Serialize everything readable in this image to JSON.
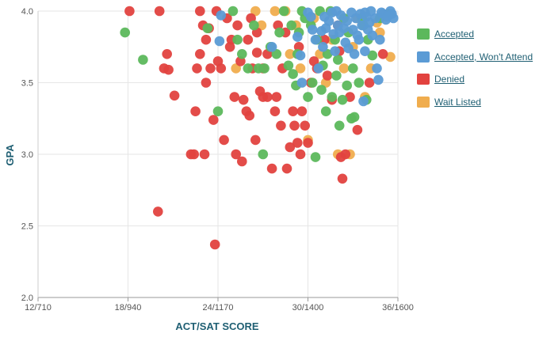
{
  "chart_data": {
    "type": "scatter",
    "xlabel": "ACT/SAT SCORE",
    "ylabel": "GPA",
    "x_axis": {
      "range": [
        12,
        36
      ],
      "ticks": [
        {
          "value": 12,
          "label": "12/710"
        },
        {
          "value": 18,
          "label": "18/940"
        },
        {
          "value": 24,
          "label": "24/1170"
        },
        {
          "value": 30,
          "label": "30/1400"
        },
        {
          "value": 36,
          "label": "36/1600"
        }
      ]
    },
    "y_axis": {
      "range": [
        2.0,
        4.0
      ],
      "ticks": [
        {
          "value": 2.0,
          "label": "2.0"
        },
        {
          "value": 2.5,
          "label": "2.5"
        },
        {
          "value": 3.0,
          "label": "3.0"
        },
        {
          "value": 3.5,
          "label": "3.5"
        },
        {
          "value": 4.0,
          "label": "4.0"
        }
      ]
    },
    "grid": true,
    "legend_position": "right",
    "series": [
      {
        "name": "Wait Listed",
        "color": "#f0ad4e",
        "points": [
          [
            25.2,
            3.6
          ],
          [
            26.5,
            4.0
          ],
          [
            27.8,
            4.0
          ],
          [
            28.5,
            4.0
          ],
          [
            29.2,
            3.9
          ],
          [
            30.0,
            3.1
          ],
          [
            30.8,
            3.7
          ],
          [
            31.2,
            3.5
          ],
          [
            32.0,
            3.0
          ],
          [
            32.8,
            3.0
          ],
          [
            33.3,
            3.95
          ],
          [
            33.8,
            3.4
          ],
          [
            34.2,
            3.6
          ],
          [
            34.8,
            3.85
          ],
          [
            35.5,
            3.68
          ],
          [
            29.5,
            3.6
          ],
          [
            31.6,
            3.8
          ],
          [
            28.8,
            3.7
          ],
          [
            30.4,
            3.95
          ],
          [
            33.0,
            3.75
          ],
          [
            26.9,
            3.9
          ],
          [
            32.4,
            3.6
          ],
          [
            34.6,
            3.92
          ]
        ]
      },
      {
        "name": "Denied",
        "color": "#e2423f",
        "points": [
          [
            18.1,
            4.0
          ],
          [
            20.1,
            4.0
          ],
          [
            20.4,
            3.6
          ],
          [
            20.6,
            3.7
          ],
          [
            20.7,
            3.59
          ],
          [
            21.1,
            3.41
          ],
          [
            20.0,
            2.6
          ],
          [
            22.2,
            3.0
          ],
          [
            22.4,
            3.0
          ],
          [
            22.6,
            3.6
          ],
          [
            23.0,
            3.9
          ],
          [
            23.2,
            3.8
          ],
          [
            23.5,
            3.6
          ],
          [
            23.2,
            3.5
          ],
          [
            23.7,
            3.24
          ],
          [
            23.8,
            2.37
          ],
          [
            24.2,
            3.6
          ],
          [
            24.4,
            3.1
          ],
          [
            24.9,
            3.8
          ],
          [
            25.1,
            3.4
          ],
          [
            25.2,
            3.0
          ],
          [
            25.6,
            2.95
          ],
          [
            25.7,
            3.38
          ],
          [
            25.9,
            3.3
          ],
          [
            26.1,
            3.27
          ],
          [
            26.3,
            3.6
          ],
          [
            26.6,
            3.71
          ],
          [
            26.8,
            3.44
          ],
          [
            27.0,
            3.4
          ],
          [
            27.3,
            3.4
          ],
          [
            27.6,
            2.9
          ],
          [
            27.8,
            3.3
          ],
          [
            27.9,
            3.4
          ],
          [
            28.3,
            3.6
          ],
          [
            28.6,
            2.9
          ],
          [
            28.8,
            3.05
          ],
          [
            29.0,
            3.3
          ],
          [
            29.1,
            3.2
          ],
          [
            29.3,
            3.08
          ],
          [
            29.5,
            3.0
          ],
          [
            29.6,
            3.3
          ],
          [
            29.8,
            3.2
          ],
          [
            30.0,
            3.08
          ],
          [
            30.2,
            3.5
          ],
          [
            30.6,
            3.6
          ],
          [
            31.1,
            3.8
          ],
          [
            31.6,
            3.38
          ],
          [
            32.0,
            3.9
          ],
          [
            32.2,
            2.98
          ],
          [
            32.3,
            2.83
          ],
          [
            32.5,
            3.0
          ],
          [
            32.8,
            3.4
          ],
          [
            33.3,
            3.17
          ],
          [
            34.1,
            3.5
          ],
          [
            35.0,
            3.7
          ],
          [
            22.8,
            4.0
          ],
          [
            23.9,
            4.0
          ],
          [
            24.6,
            3.95
          ],
          [
            25.3,
            3.9
          ],
          [
            26.0,
            3.8
          ],
          [
            26.6,
            3.85
          ],
          [
            27.3,
            3.7
          ],
          [
            28.0,
            3.9
          ],
          [
            22.8,
            3.7
          ],
          [
            23.4,
            3.88
          ],
          [
            24.0,
            3.65
          ],
          [
            24.8,
            3.75
          ],
          [
            25.5,
            3.65
          ],
          [
            26.2,
            3.95
          ],
          [
            27.0,
            3.6
          ],
          [
            28.5,
            3.85
          ],
          [
            29.4,
            3.75
          ],
          [
            30.4,
            3.65
          ],
          [
            31.3,
            3.55
          ],
          [
            32.1,
            3.72
          ],
          [
            22.5,
            3.3
          ],
          [
            23.1,
            3.0
          ],
          [
            26.5,
            3.1
          ],
          [
            28.2,
            3.2
          ]
        ]
      },
      {
        "name": "Accepted",
        "color": "#5cb85c",
        "points": [
          [
            17.8,
            3.85
          ],
          [
            19.0,
            3.66
          ],
          [
            23.3,
            3.88
          ],
          [
            24.0,
            3.3
          ],
          [
            25.0,
            4.0
          ],
          [
            25.3,
            3.8
          ],
          [
            26.0,
            3.6
          ],
          [
            26.7,
            3.6
          ],
          [
            27.0,
            3.0
          ],
          [
            27.1,
            3.6
          ],
          [
            27.9,
            3.7
          ],
          [
            28.1,
            3.85
          ],
          [
            28.7,
            3.62
          ],
          [
            29.0,
            3.56
          ],
          [
            29.2,
            3.48
          ],
          [
            29.8,
            3.95
          ],
          [
            30.0,
            3.4
          ],
          [
            30.3,
            3.5
          ],
          [
            30.5,
            2.98
          ],
          [
            31.0,
            3.62
          ],
          [
            31.2,
            3.3
          ],
          [
            31.6,
            3.4
          ],
          [
            32.0,
            3.66
          ],
          [
            32.1,
            3.2
          ],
          [
            32.3,
            3.38
          ],
          [
            32.6,
            3.48
          ],
          [
            32.9,
            3.25
          ],
          [
            33.1,
            3.26
          ],
          [
            33.4,
            3.5
          ],
          [
            33.9,
            3.38
          ],
          [
            34.3,
            3.69
          ],
          [
            34.8,
            3.95
          ],
          [
            35.4,
            3.98
          ],
          [
            28.4,
            4.0
          ],
          [
            29.6,
            4.0
          ],
          [
            30.8,
            4.0
          ],
          [
            31.5,
            4.0
          ],
          [
            32.7,
            3.85
          ],
          [
            33.7,
            3.9
          ],
          [
            31.3,
            3.7
          ],
          [
            30.6,
            3.8
          ],
          [
            29.4,
            3.85
          ],
          [
            28.9,
            3.9
          ],
          [
            27.5,
            3.75
          ],
          [
            26.4,
            3.9
          ],
          [
            25.6,
            3.7
          ],
          [
            33.6,
            3.95
          ],
          [
            34.0,
            3.8
          ],
          [
            31.8,
            3.8
          ],
          [
            30.2,
            3.9
          ],
          [
            32.4,
            3.95
          ],
          [
            30.9,
            3.45
          ],
          [
            31.9,
            3.55
          ],
          [
            33.0,
            3.6
          ],
          [
            29.3,
            3.7
          ]
        ]
      },
      {
        "name": "Accepted, Won't Attend",
        "color": "#5b9bd5",
        "points": [
          [
            24.1,
            3.79
          ],
          [
            24.2,
            3.97
          ],
          [
            27.6,
            3.75
          ],
          [
            29.3,
            3.82
          ],
          [
            29.5,
            3.69
          ],
          [
            29.6,
            3.5
          ],
          [
            30.0,
            3.99
          ],
          [
            30.3,
            3.87
          ],
          [
            30.7,
            3.6
          ],
          [
            30.9,
            3.86
          ],
          [
            31.1,
            3.96
          ],
          [
            31.4,
            3.93
          ],
          [
            31.6,
            3.99
          ],
          [
            31.8,
            3.72
          ],
          [
            31.9,
            4.0
          ],
          [
            32.1,
            3.85
          ],
          [
            32.2,
            3.97
          ],
          [
            32.4,
            3.88
          ],
          [
            32.6,
            3.93
          ],
          [
            32.7,
            3.74
          ],
          [
            32.9,
            3.99
          ],
          [
            33.0,
            3.87
          ],
          [
            33.1,
            3.7
          ],
          [
            33.2,
            3.95
          ],
          [
            33.3,
            3.83
          ],
          [
            33.5,
            3.98
          ],
          [
            33.6,
            3.9
          ],
          [
            33.7,
            3.37
          ],
          [
            33.8,
            3.72
          ],
          [
            33.9,
            3.96
          ],
          [
            34.0,
            3.87
          ],
          [
            34.2,
            4.0
          ],
          [
            34.3,
            3.83
          ],
          [
            34.5,
            3.95
          ],
          [
            34.6,
            3.6
          ],
          [
            34.7,
            3.52
          ],
          [
            34.8,
            3.8
          ],
          [
            35.0,
            3.98
          ],
          [
            35.2,
            3.94
          ],
          [
            35.5,
            4.0
          ],
          [
            35.6,
            3.98
          ],
          [
            35.7,
            3.95
          ],
          [
            30.5,
            3.8
          ],
          [
            31.0,
            3.75
          ],
          [
            32.0,
            3.9
          ],
          [
            33.4,
            3.8
          ],
          [
            34.1,
            3.92
          ],
          [
            34.9,
            3.99
          ],
          [
            35.3,
            3.96
          ],
          [
            31.2,
            3.88
          ],
          [
            32.5,
            3.78
          ],
          [
            33.8,
            3.99
          ],
          [
            30.2,
            3.96
          ],
          [
            31.7,
            3.84
          ]
        ]
      }
    ],
    "legend": [
      {
        "label": "Accepted",
        "color": "#5cb85c"
      },
      {
        "label": "Accepted, Won't Attend",
        "color": "#5b9bd5"
      },
      {
        "label": "Denied",
        "color": "#e2423f"
      },
      {
        "label": "Wait Listed",
        "color": "#f0ad4e"
      }
    ]
  }
}
